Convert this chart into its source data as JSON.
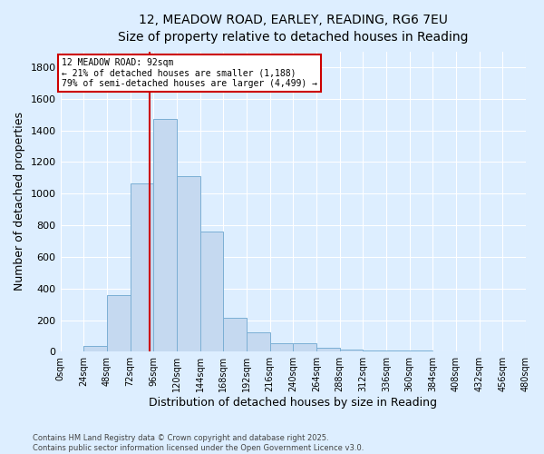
{
  "title_line1": "12, MEADOW ROAD, EARLEY, READING, RG6 7EU",
  "title_line2": "Size of property relative to detached houses in Reading",
  "xlabel": "Distribution of detached houses by size in Reading",
  "ylabel": "Number of detached properties",
  "bar_color": "#c5d9f0",
  "bar_edge_color": "#7bafd4",
  "background_color": "#ddeeff",
  "fig_background_color": "#ddeeff",
  "grid_color": "#ffffff",
  "bin_edges": [
    0,
    24,
    48,
    72,
    96,
    120,
    144,
    168,
    192,
    216,
    240,
    264,
    288,
    312,
    336,
    360,
    384,
    408,
    432,
    456,
    480
  ],
  "bin_labels": [
    "0sqm",
    "24sqm",
    "48sqm",
    "72sqm",
    "96sqm",
    "120sqm",
    "144sqm",
    "168sqm",
    "192sqm",
    "216sqm",
    "240sqm",
    "264sqm",
    "288sqm",
    "312sqm",
    "336sqm",
    "360sqm",
    "384sqm",
    "408sqm",
    "432sqm",
    "456sqm",
    "480sqm"
  ],
  "counts": [
    2,
    35,
    360,
    1065,
    1470,
    1110,
    760,
    215,
    120,
    55,
    55,
    25,
    15,
    10,
    5,
    5,
    2,
    2,
    1,
    0
  ],
  "property_size": 92,
  "vline_color": "#cc0000",
  "annotation_text": "12 MEADOW ROAD: 92sqm\n← 21% of detached houses are smaller (1,188)\n79% of semi-detached houses are larger (4,499) →",
  "annotation_box_color": "#ffffff",
  "annotation_box_edge": "#cc0000",
  "footer_line1": "Contains HM Land Registry data © Crown copyright and database right 2025.",
  "footer_line2": "Contains public sector information licensed under the Open Government Licence v3.0.",
  "ylim": [
    0,
    1900
  ],
  "yticks": [
    0,
    200,
    400,
    600,
    800,
    1000,
    1200,
    1400,
    1600,
    1800
  ],
  "title_fontsize": 10,
  "subtitle_fontsize": 9
}
